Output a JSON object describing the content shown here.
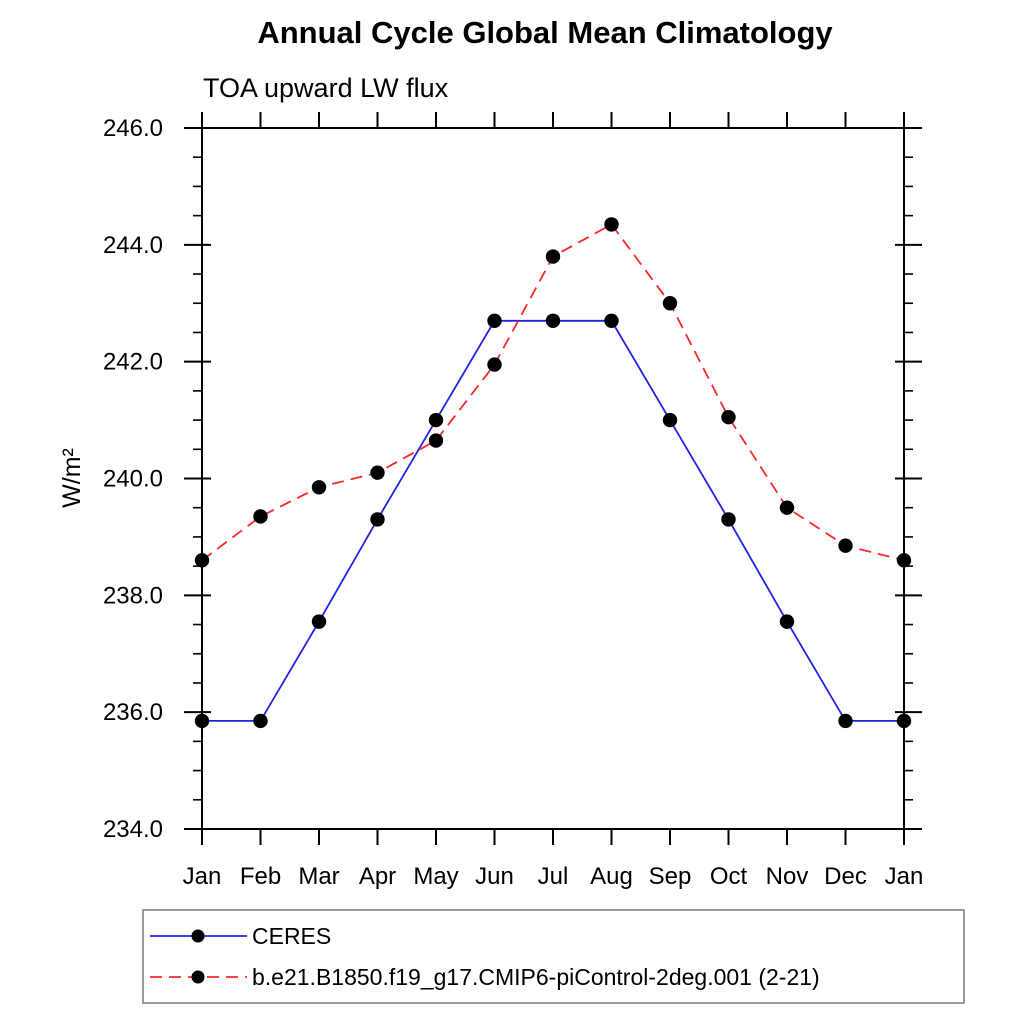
{
  "page": {
    "background": "#ffffff"
  },
  "chart_data": {
    "type": "line",
    "title": "Annual Cycle Global Mean Climatology",
    "subtitle": "TOA upward LW flux",
    "ylabel": "W/m²",
    "xlabel": "",
    "categories": [
      "Jan",
      "Feb",
      "Mar",
      "Apr",
      "May",
      "Jun",
      "Jul",
      "Aug",
      "Sep",
      "Oct",
      "Nov",
      "Dec",
      "Jan"
    ],
    "y_axis": {
      "min": 234.0,
      "max": 246.0,
      "major_step": 2.0,
      "minor_step": 0.5,
      "tick_labels": [
        "234.0",
        "236.0",
        "238.0",
        "240.0",
        "242.0",
        "244.0",
        "246.0"
      ]
    },
    "grid": false,
    "legend_position": "bottom-left",
    "series": [
      {
        "name": "CERES",
        "color": "#2222e6",
        "line_style": "solid",
        "marker": "circle",
        "marker_color": "#000000",
        "values": [
          235.85,
          235.85,
          237.55,
          239.3,
          241.0,
          242.7,
          242.7,
          242.7,
          241.0,
          239.3,
          237.55,
          235.85,
          235.85
        ]
      },
      {
        "name": "b.e21.B1850.f19_g17.CMIP6-piControl-2deg.001 (2-21)",
        "color": "#fa2828",
        "line_style": "dashed",
        "marker": "circle",
        "marker_color": "#000000",
        "values": [
          238.6,
          239.35,
          239.85,
          240.1,
          240.65,
          241.95,
          243.8,
          244.35,
          243.0,
          241.05,
          239.5,
          238.85,
          238.6
        ]
      }
    ]
  }
}
